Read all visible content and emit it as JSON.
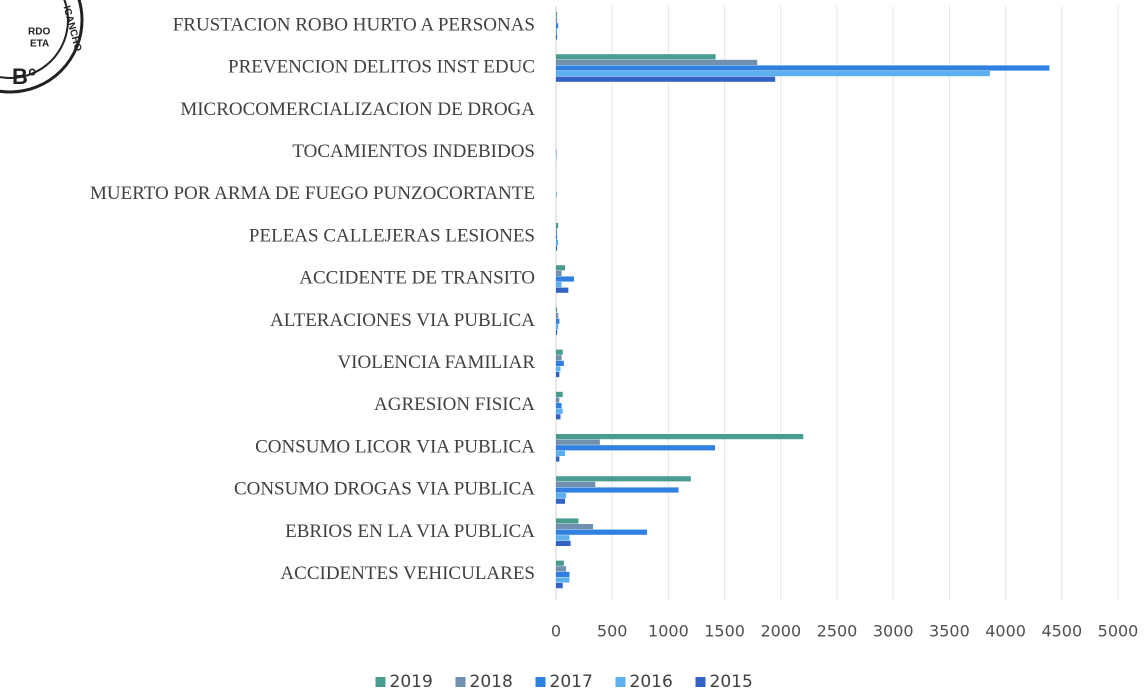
{
  "chart_data": {
    "type": "barh",
    "annotations": [
      "RDO",
      "ETA",
      "B°",
      "ICANCHO"
    ],
    "categories": [
      "FRUSTACION ROBO HURTO A PERSONAS",
      "PREVENCION DELITOS INST EDUC",
      "MICROCOMERCIALIZACION DE DROGA",
      "TOCAMIENTOS INDEBIDOS",
      "MUERTO POR ARMA DE FUEGO PUNZOCORTANTE",
      "PELEAS CALLEJERAS LESIONES",
      "ACCIDENTE DE TRANSITO",
      "ALTERACIONES VIA PUBLICA",
      "VIOLENCIA FAMILIAR",
      "AGRESION FISICA",
      "CONSUMO LICOR VIA PUBLICA",
      "CONSUMO DROGAS VIA PUBLICA",
      "EBRIOS EN LA VIA PUBLICA",
      "ACCIDENTES VEHICULARES"
    ],
    "series": [
      {
        "name": "2019",
        "color": "#4a9c90",
        "values": [
          10,
          1420,
          0,
          0,
          0,
          20,
          80,
          10,
          60,
          60,
          2200,
          1200,
          200,
          70
        ]
      },
      {
        "name": "2018",
        "color": "#7090b0",
        "values": [
          10,
          1790,
          0,
          0,
          0,
          10,
          50,
          20,
          50,
          30,
          390,
          350,
          330,
          90
        ]
      },
      {
        "name": "2017",
        "color": "#2f80e0",
        "values": [
          20,
          4390,
          0,
          5,
          5,
          10,
          160,
          30,
          70,
          50,
          1415,
          1090,
          810,
          120
        ]
      },
      {
        "name": "2016",
        "color": "#5cb0f0",
        "values": [
          10,
          3860,
          0,
          5,
          0,
          20,
          50,
          20,
          40,
          60,
          80,
          90,
          120,
          120
        ]
      },
      {
        "name": "2015",
        "color": "#3262c4",
        "values": [
          10,
          1950,
          0,
          0,
          0,
          10,
          110,
          10,
          30,
          40,
          30,
          80,
          130,
          60
        ]
      }
    ],
    "xlim": [
      0,
      5000
    ],
    "xticks": [
      0,
      500,
      1000,
      1500,
      2000,
      2500,
      3000,
      3500,
      4000,
      4500,
      5000
    ],
    "grid": true,
    "legend": "bottom"
  }
}
